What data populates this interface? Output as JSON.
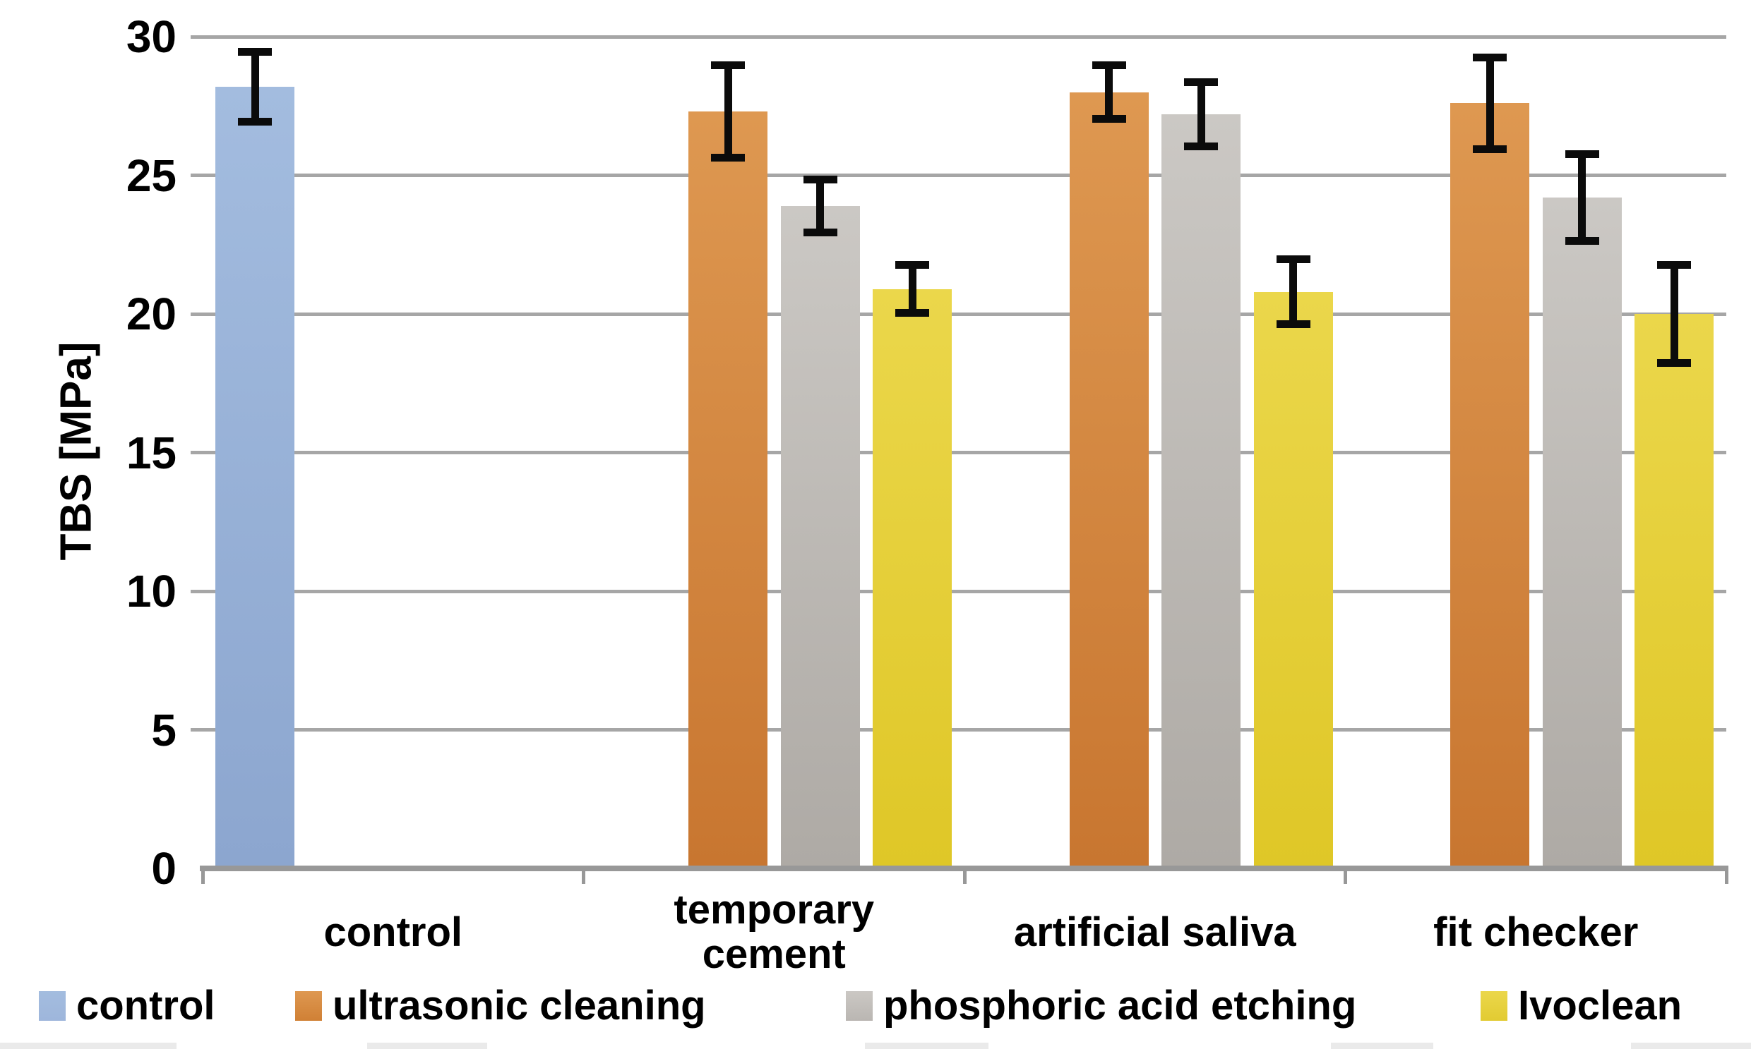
{
  "chart_data": {
    "type": "bar",
    "title": "",
    "xlabel": "",
    "ylabel": "TBS [MPa]",
    "ylim": [
      0,
      30
    ],
    "yticks": [
      0,
      5,
      10,
      15,
      20,
      25,
      30
    ],
    "grid": true,
    "legend_position": "bottom",
    "error_bars": true,
    "categories": [
      "control",
      "temporary\ncement",
      "artificial saliva",
      "fit checker"
    ],
    "series": [
      {
        "name": "control",
        "color_top": "#a3bcdf",
        "color_bottom": "#8ca6cf",
        "legend_color": "#9eb6db",
        "values": [
          28.2,
          null,
          null,
          null
        ],
        "errors": [
          1.4,
          null,
          null,
          null
        ]
      },
      {
        "name": "ultrasonic cleaning",
        "color_top": "#de9851",
        "color_bottom": "#c87630",
        "legend_color": "#d08035",
        "values": [
          null,
          27.3,
          28.0,
          27.6
        ],
        "errors": [
          null,
          1.8,
          1.1,
          1.8
        ]
      },
      {
        "name": "phosphoric acid etching",
        "color_top": "#cbc8c4",
        "color_bottom": "#aeaaa5",
        "legend_color": "#bab6b2",
        "values": [
          null,
          23.9,
          27.2,
          24.2
        ],
        "errors": [
          null,
          1.1,
          1.3,
          1.7
        ]
      },
      {
        "name": "Ivoclean",
        "color_top": "#ebd74b",
        "color_bottom": "#dfc727",
        "legend_color": "#e2cb32",
        "values": [
          null,
          20.9,
          20.8,
          20.0
        ],
        "errors": [
          null,
          1.0,
          1.3,
          1.9
        ]
      }
    ],
    "colors": {
      "gridline": "#a6a6a6",
      "axis": "#989898",
      "error_bar": "#0b0b0b"
    }
  }
}
